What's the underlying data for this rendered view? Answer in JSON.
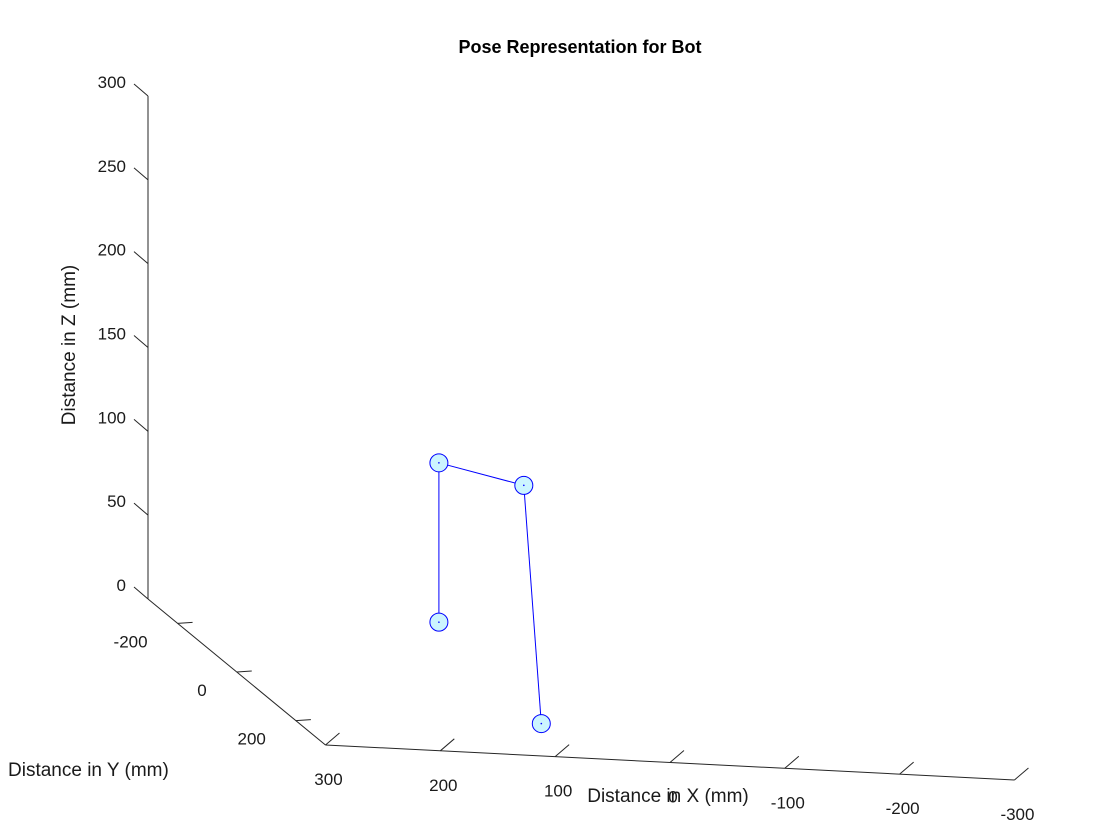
{
  "chart_data": {
    "type": "line3d",
    "title": "Pose Representation for Bot",
    "xlabel": "Distance in X (mm)",
    "ylabel": "Distance in Y (mm)",
    "zlabel": "Distance in Z (mm)",
    "xlim": [
      -300,
      300
    ],
    "ylim": [
      -300,
      300
    ],
    "zlim": [
      0,
      300
    ],
    "x_direction": "reversed",
    "x_ticks": [
      "300",
      "200",
      "100",
      "0",
      "-100",
      "-200",
      "-300"
    ],
    "y_ticks": [
      "-200",
      "0",
      "200"
    ],
    "z_ticks": [
      "0",
      "50",
      "100",
      "150",
      "200",
      "250",
      "300"
    ],
    "grid": false,
    "series": [
      {
        "line_color": "#0000ff",
        "marker": "circle",
        "marker_face_color": "#ccf5ff",
        "marker_edge_color": "#0000ff",
        "points": [
          {
            "x": 85,
            "y": 195,
            "z": 5
          },
          {
            "x": 50,
            "y": 0,
            "z": 120
          },
          {
            "x": 75,
            "y": -190,
            "z": 105
          },
          {
            "x": 75,
            "y": -190,
            "z": 10
          }
        ]
      }
    ]
  }
}
